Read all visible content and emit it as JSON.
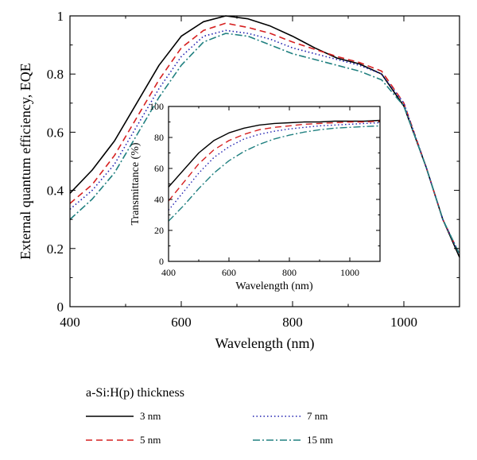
{
  "chart_data": [
    {
      "type": "line",
      "xlabel": "Wavelength (nm)",
      "ylabel": "External quantum efficiency, EQE",
      "xlim": [
        400,
        1100
      ],
      "ylim": [
        0,
        1.0
      ],
      "xticks": [
        400,
        600,
        800,
        1000
      ],
      "yticks": [
        0,
        0.2,
        0.4,
        0.6,
        0.8,
        1
      ],
      "xtick_labels": [
        "400",
        "600",
        "800",
        "1000"
      ],
      "ytick_labels": [
        "0",
        "0.2",
        "0.4",
        "0.6",
        "0.8",
        "1"
      ],
      "grid": false,
      "series": [
        {
          "name": "3 nm",
          "color": "#000000",
          "dash": "solid",
          "x": [
            400,
            440,
            480,
            520,
            560,
            600,
            640,
            680,
            720,
            760,
            800,
            840,
            880,
            920,
            960,
            1000,
            1040,
            1070,
            1100
          ],
          "y": [
            0.39,
            0.47,
            0.57,
            0.7,
            0.83,
            0.93,
            0.98,
            1.0,
            0.99,
            0.965,
            0.93,
            0.89,
            0.855,
            0.835,
            0.8,
            0.69,
            0.48,
            0.3,
            0.17
          ]
        },
        {
          "name": "5 nm",
          "color": "#d62020",
          "dash": "dashed",
          "x": [
            400,
            440,
            480,
            520,
            560,
            600,
            640,
            680,
            720,
            760,
            800,
            840,
            880,
            920,
            960,
            1000,
            1040,
            1070,
            1100
          ],
          "y": [
            0.355,
            0.42,
            0.52,
            0.65,
            0.78,
            0.89,
            0.95,
            0.975,
            0.96,
            0.94,
            0.91,
            0.885,
            0.86,
            0.84,
            0.81,
            0.7,
            0.48,
            0.3,
            0.18
          ]
        },
        {
          "name": "7 nm",
          "color": "#2020b0",
          "dash": "dotted",
          "x": [
            400,
            440,
            480,
            520,
            560,
            600,
            640,
            680,
            720,
            760,
            800,
            840,
            880,
            920,
            960,
            1000,
            1040,
            1070,
            1100
          ],
          "y": [
            0.335,
            0.4,
            0.49,
            0.62,
            0.75,
            0.86,
            0.93,
            0.95,
            0.94,
            0.92,
            0.89,
            0.87,
            0.85,
            0.83,
            0.8,
            0.7,
            0.48,
            0.3,
            0.18
          ]
        },
        {
          "name": "15 nm",
          "color": "#208080",
          "dash": "dashdot",
          "x": [
            400,
            440,
            480,
            520,
            560,
            600,
            640,
            680,
            720,
            760,
            800,
            840,
            880,
            920,
            960,
            1000,
            1040,
            1070,
            1100
          ],
          "y": [
            0.3,
            0.37,
            0.46,
            0.59,
            0.72,
            0.83,
            0.91,
            0.94,
            0.93,
            0.9,
            0.87,
            0.85,
            0.83,
            0.81,
            0.78,
            0.69,
            0.48,
            0.3,
            0.18
          ]
        }
      ]
    },
    {
      "type": "line",
      "inset": true,
      "xlabel": "Wavelength (nm)",
      "ylabel": "Transmittance (%)",
      "xlim": [
        400,
        1100
      ],
      "ylim": [
        0,
        100
      ],
      "xticks": [
        400,
        600,
        800,
        1000
      ],
      "yticks": [
        0,
        20,
        40,
        60,
        80,
        100
      ],
      "xtick_labels": [
        "400",
        "600",
        "800",
        "1000"
      ],
      "ytick_labels": [
        "0",
        "20",
        "40",
        "60",
        "80",
        "100"
      ],
      "grid": false,
      "series": [
        {
          "name": "3 nm",
          "color": "#000000",
          "dash": "solid",
          "x": [
            400,
            450,
            500,
            550,
            600,
            650,
            700,
            750,
            800,
            850,
            900,
            950,
            1000,
            1050,
            1100
          ],
          "y": [
            48,
            59,
            70,
            78,
            83,
            86,
            88,
            89,
            89.5,
            90,
            90,
            90.5,
            90.5,
            90.5,
            91
          ]
        },
        {
          "name": "5 nm",
          "color": "#d62020",
          "dash": "dashed",
          "x": [
            400,
            450,
            500,
            550,
            600,
            650,
            700,
            750,
            800,
            850,
            900,
            950,
            1000,
            1050,
            1100
          ],
          "y": [
            39,
            51,
            63,
            72,
            78,
            82,
            85,
            86.5,
            87.5,
            88.5,
            89,
            89.5,
            90,
            90,
            90.5
          ]
        },
        {
          "name": "7 nm",
          "color": "#2020b0",
          "dash": "dotted",
          "x": [
            400,
            450,
            500,
            550,
            600,
            650,
            700,
            750,
            800,
            850,
            900,
            950,
            1000,
            1050,
            1100
          ],
          "y": [
            33,
            45,
            57,
            67,
            74,
            79,
            82,
            84,
            85.5,
            86.5,
            87.5,
            88,
            88.5,
            89,
            89.5
          ]
        },
        {
          "name": "15 nm",
          "color": "#208080",
          "dash": "dashdot",
          "x": [
            400,
            450,
            500,
            550,
            600,
            650,
            700,
            750,
            800,
            850,
            900,
            950,
            1000,
            1050,
            1100
          ],
          "y": [
            26,
            36,
            47,
            57,
            65,
            71,
            75.5,
            79,
            81.5,
            83.5,
            85,
            86,
            86.5,
            87,
            87.5
          ]
        }
      ]
    }
  ],
  "legend": {
    "title": "a-Si:H(p) thickness",
    "items": [
      {
        "label": "3 nm",
        "color": "#000000",
        "dash": "solid"
      },
      {
        "label": "5 nm",
        "color": "#d62020",
        "dash": "dashed"
      },
      {
        "label": "7 nm",
        "color": "#2020b0",
        "dash": "dotted"
      },
      {
        "label": "15 nm",
        "color": "#208080",
        "dash": "dashdot"
      }
    ]
  }
}
